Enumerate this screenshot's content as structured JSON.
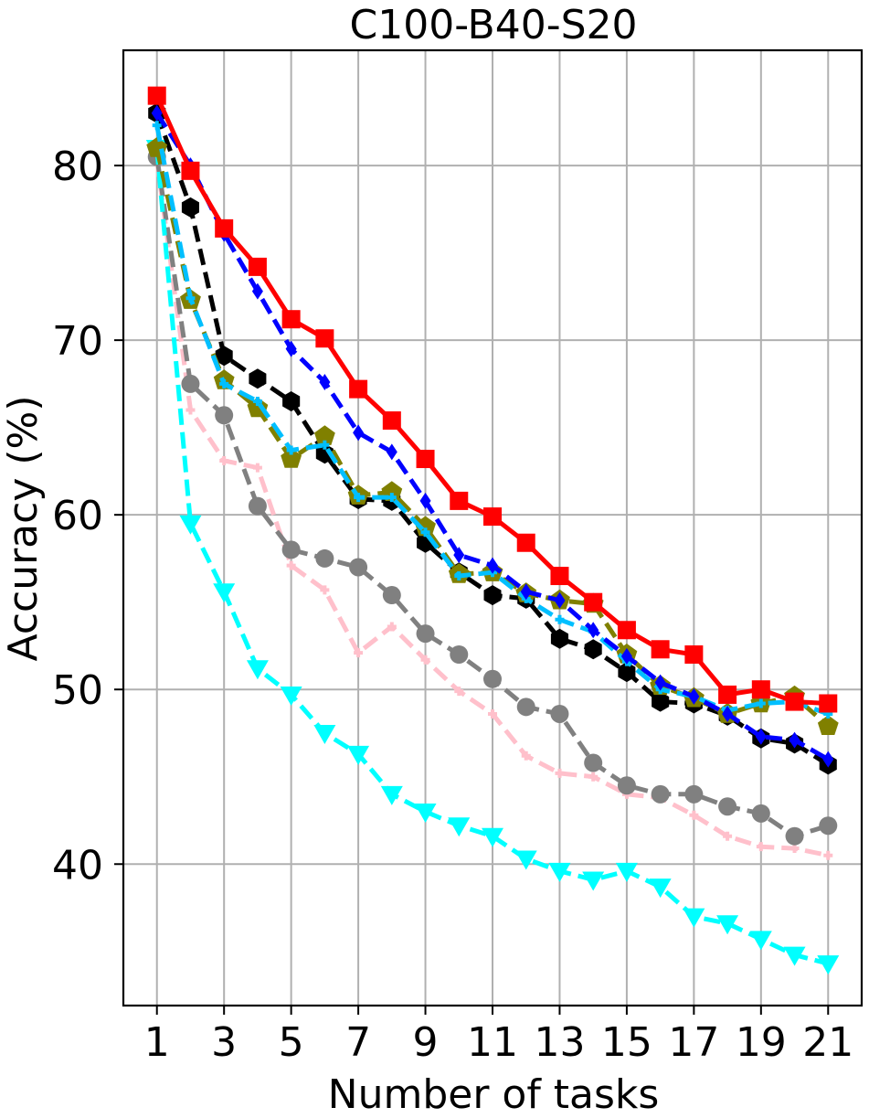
{
  "chart_data": {
    "type": "line",
    "title": "C100-B40-S20",
    "xlabel": "Number of tasks",
    "ylabel": "Accuracy (%)",
    "xlim": [
      0,
      22
    ],
    "ylim": [
      31.9,
      86.6
    ],
    "xticks": [
      1,
      3,
      5,
      7,
      9,
      11,
      13,
      15,
      17,
      19,
      21
    ],
    "yticks": [
      40,
      50,
      60,
      70,
      80
    ],
    "grid": true,
    "x": [
      1,
      2,
      3,
      4,
      5,
      6,
      7,
      8,
      9,
      10,
      11,
      12,
      13,
      14,
      15,
      16,
      17,
      18,
      19,
      20,
      21
    ],
    "series": [
      {
        "color": "#ffc0cb",
        "linestyle": "dashed",
        "marker": "plus",
        "values": [
          80.3,
          66.0,
          63.1,
          62.7,
          57.1,
          55.7,
          52.1,
          53.6,
          51.7,
          49.9,
          48.6,
          46.2,
          45.2,
          45.0,
          44.0,
          43.8,
          42.8,
          41.6,
          41.0,
          40.9,
          40.5
        ]
      },
      {
        "color": "#808080",
        "linestyle": "dashed",
        "marker": "circle",
        "values": [
          80.5,
          67.5,
          65.7,
          60.5,
          58.0,
          57.5,
          57.0,
          55.4,
          53.2,
          52.0,
          50.6,
          49.0,
          48.6,
          45.8,
          44.5,
          44.0,
          44.0,
          43.3,
          42.9,
          41.6,
          42.2
        ]
      },
      {
        "color": "#00ffff",
        "linestyle": "dashed",
        "marker": "triangle-down",
        "values": [
          81.0,
          59.5,
          55.6,
          51.2,
          49.7,
          47.5,
          46.3,
          44.0,
          43.0,
          42.2,
          41.6,
          40.3,
          39.6,
          39.1,
          39.6,
          38.7,
          37.0,
          36.6,
          35.7,
          34.8,
          34.3
        ]
      },
      {
        "color": "#000000",
        "linestyle": "dashed",
        "marker": "hexagon",
        "values": [
          83.0,
          77.6,
          69.1,
          67.8,
          66.5,
          63.5,
          60.9,
          60.8,
          58.4,
          56.7,
          55.4,
          55.2,
          52.9,
          52.3,
          51.0,
          49.3,
          49.2,
          48.5,
          47.2,
          46.9,
          45.7
        ]
      },
      {
        "color": "#808000",
        "linestyle": "dashed",
        "marker": "pentagon",
        "values": [
          81.0,
          72.3,
          67.7,
          66.1,
          63.2,
          64.5,
          61.1,
          61.3,
          59.3,
          56.6,
          56.7,
          55.5,
          55.1,
          54.9,
          52.0,
          50.2,
          49.5,
          48.6,
          49.2,
          49.6,
          47.9
        ]
      },
      {
        "color": "#00bfff",
        "linestyle": "dashed",
        "marker": "plus",
        "values": [
          82.3,
          72.4,
          67.5,
          66.5,
          63.7,
          64.0,
          61.0,
          61.0,
          59.0,
          56.5,
          56.7,
          55.2,
          54.0,
          53.3,
          51.6,
          50.0,
          49.6,
          48.8,
          49.2,
          49.3,
          48.6
        ]
      },
      {
        "color": "#0000ff",
        "linestyle": "dashed",
        "marker": "diamond",
        "values": [
          83.0,
          80.0,
          76.1,
          72.8,
          69.5,
          67.6,
          64.7,
          63.6,
          60.8,
          57.7,
          57.1,
          55.6,
          55.1,
          53.4,
          51.9,
          50.4,
          49.6,
          48.6,
          47.3,
          47.1,
          46.0
        ]
      },
      {
        "color": "#ff0000",
        "linestyle": "solid",
        "marker": "square",
        "values": [
          84.0,
          79.7,
          76.4,
          74.2,
          71.2,
          70.1,
          67.2,
          65.4,
          63.2,
          60.8,
          59.9,
          58.4,
          56.5,
          55.0,
          53.4,
          52.3,
          52.0,
          49.7,
          50.0,
          49.3,
          49.2
        ]
      }
    ]
  }
}
